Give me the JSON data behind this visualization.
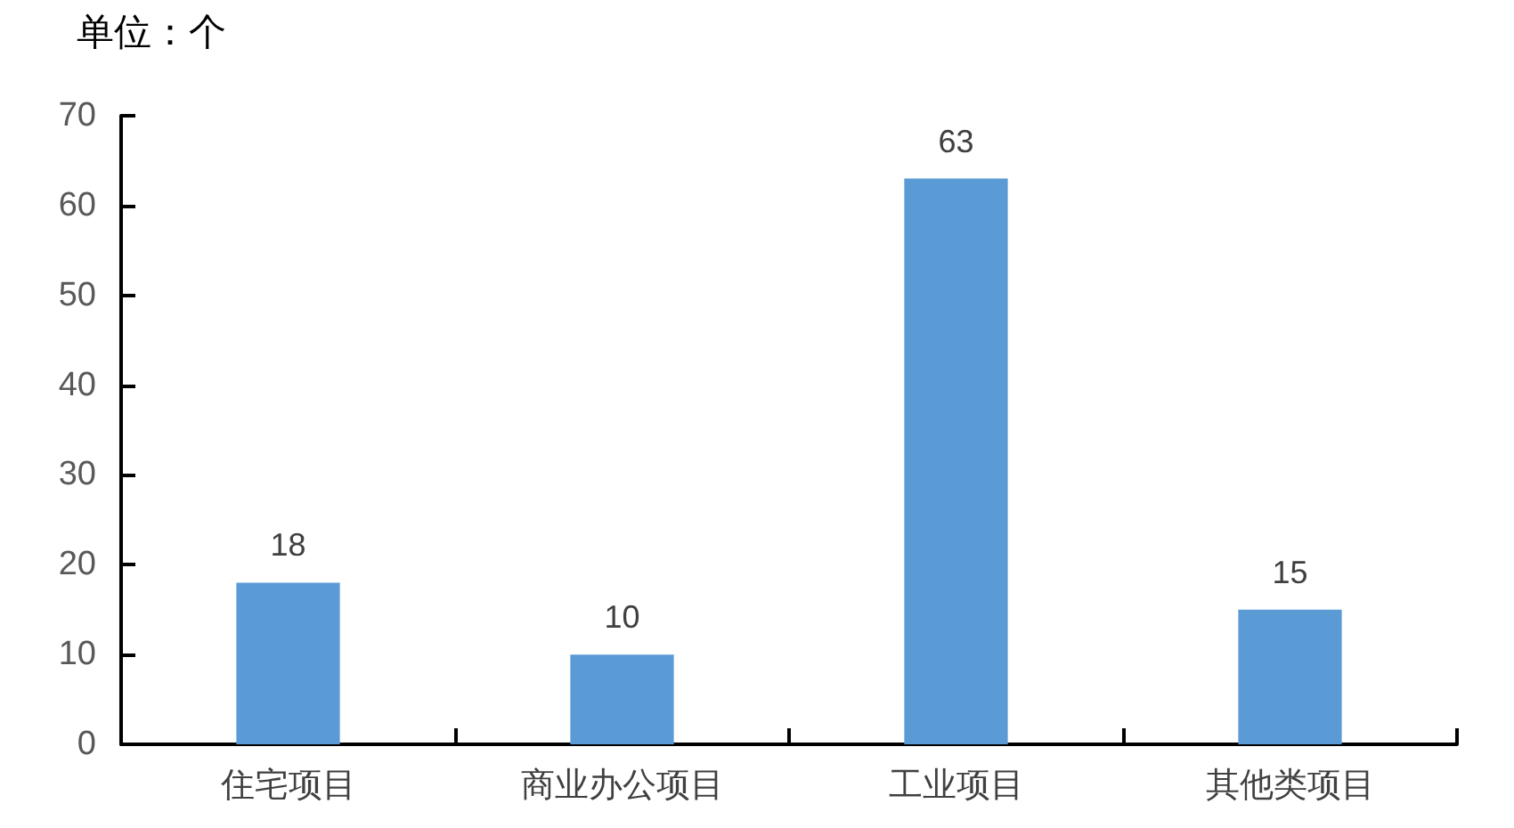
{
  "chart_data": {
    "type": "bar",
    "ylabel": "单位：个",
    "categories": [
      "住宅项目",
      "商业办公项目",
      "工业项目",
      "其他类项目"
    ],
    "values": [
      18,
      10,
      63,
      15
    ],
    "color": "#5b9bd5",
    "ylim": [
      0,
      70
    ],
    "yticks": [
      0,
      10,
      20,
      30,
      40,
      50,
      60,
      70
    ],
    "data_labels": true,
    "grid": false
  }
}
